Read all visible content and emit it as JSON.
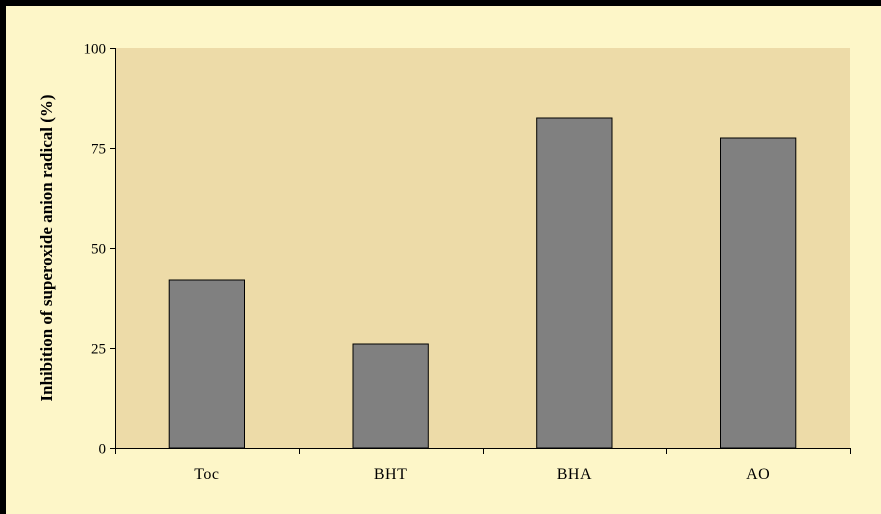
{
  "colors": {
    "outer_border": "#000000",
    "chart_area": "#fdf6c8",
    "plot_area": "#eddba8",
    "bar_fill": "#808080",
    "bar_stroke": "#000000"
  },
  "chart_data": {
    "type": "bar",
    "title": "",
    "xlabel": "",
    "ylabel": "Inhibition of superoxide anion radical (%)",
    "categories": [
      "Toc",
      "BHT",
      "BHA",
      "AO"
    ],
    "values": [
      42,
      26,
      82.5,
      77.5
    ],
    "ylim": [
      0,
      100
    ],
    "yticks": [
      0,
      25,
      50,
      75,
      100
    ],
    "grid": false,
    "legend": "none"
  }
}
